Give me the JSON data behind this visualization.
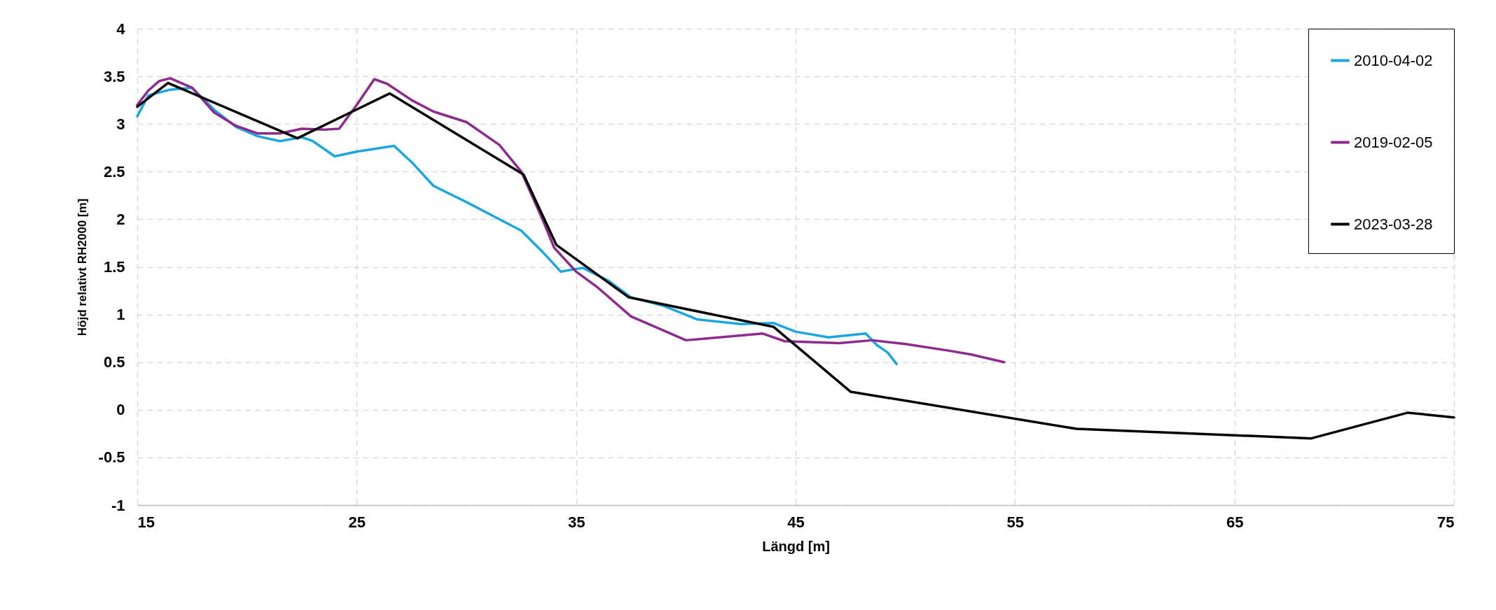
{
  "chart_data": {
    "type": "line",
    "xlabel": "Längd [m]",
    "ylabel": "Höjd relativt RH2000 [m]",
    "xlim": [
      15,
      75
    ],
    "xticks": [
      15,
      25,
      35,
      45,
      55,
      65,
      75
    ],
    "ylim": [
      -1,
      4
    ],
    "yticks": [
      -1,
      -0.5,
      0,
      0.5,
      1,
      1.5,
      2,
      2.5,
      3,
      3.5,
      4
    ],
    "grid": true,
    "legend": "top right",
    "line_style": "solid",
    "marker": "none",
    "series": [
      {
        "name": "2010-04-02",
        "color": "#1aa7e0",
        "x": [
          15,
          15.5,
          16.5,
          17.5,
          18.5,
          19.5,
          20.5,
          21.5,
          22.5,
          23,
          24,
          25,
          26.7,
          27.5,
          28.5,
          30,
          31,
          32.5,
          33.5,
          34.3,
          35.3,
          36.5,
          37.5,
          39,
          40.5,
          42.5,
          44,
          45,
          46.5,
          48.2,
          48.7,
          49.2,
          49.6
        ],
        "values": [
          3.08,
          3.3,
          3.36,
          3.38,
          3.15,
          2.97,
          2.87,
          2.82,
          2.86,
          2.82,
          2.66,
          2.71,
          2.77,
          2.6,
          2.35,
          2.18,
          2.06,
          1.88,
          1.65,
          1.45,
          1.49,
          1.35,
          1.18,
          1.09,
          0.95,
          0.9,
          0.91,
          0.82,
          0.76,
          0.8,
          0.68,
          0.6,
          0.48
        ]
      },
      {
        "name": "2019-02-05",
        "color": "#8e2a8e",
        "x": [
          15,
          15.5,
          16,
          16.5,
          17.5,
          18.5,
          19.5,
          20.5,
          21.5,
          22.5,
          23.5,
          24.2,
          25,
          25.8,
          26.4,
          27.5,
          28.5,
          30,
          31.5,
          32.5,
          33.5,
          34,
          35,
          36,
          37.5,
          38.5,
          40,
          41,
          43.5,
          44.5,
          47,
          48.5,
          50,
          52,
          53,
          54.5
        ],
        "values": [
          3.2,
          3.35,
          3.45,
          3.48,
          3.38,
          3.12,
          2.98,
          2.9,
          2.9,
          2.95,
          2.94,
          2.95,
          3.2,
          3.47,
          3.42,
          3.25,
          3.13,
          3.02,
          2.78,
          2.5,
          1.98,
          1.7,
          1.45,
          1.28,
          0.98,
          0.88,
          0.73,
          0.75,
          0.8,
          0.72,
          0.7,
          0.73,
          0.69,
          0.62,
          0.58,
          0.5
        ]
      },
      {
        "name": "2023-03-28",
        "color": "#000000",
        "x": [
          15,
          16.4,
          22.3,
          26.5,
          32.6,
          34.1,
          37.4,
          44,
          47.5,
          57.8,
          68.5,
          72.9,
          75
        ],
        "values": [
          3.18,
          3.43,
          2.85,
          3.32,
          2.47,
          1.73,
          1.18,
          0.87,
          0.19,
          -0.2,
          -0.3,
          -0.03,
          -0.08
        ]
      }
    ]
  }
}
